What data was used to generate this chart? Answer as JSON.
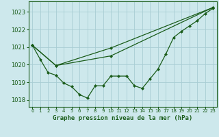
{
  "title": "Graphe pression niveau de la mer (hPa)",
  "bg_color": "#cde8ec",
  "grid_color": "#a8cdd4",
  "line_color": "#1a5c1a",
  "x_ticks": [
    0,
    1,
    2,
    3,
    4,
    5,
    6,
    7,
    8,
    9,
    10,
    11,
    12,
    13,
    14,
    15,
    16,
    17,
    18,
    19,
    20,
    21,
    22,
    23
  ],
  "y_ticks": [
    1018,
    1019,
    1020,
    1021,
    1022,
    1023
  ],
  "ylim": [
    1017.6,
    1023.6
  ],
  "xlim": [
    -0.5,
    23.5
  ],
  "line1_x": [
    0,
    1,
    2,
    3,
    4,
    5,
    6,
    7,
    8,
    9,
    10,
    11,
    12,
    13,
    14,
    15,
    16,
    17,
    18,
    19,
    20,
    21,
    22,
    23
  ],
  "line1_y": [
    1021.1,
    1020.3,
    1019.55,
    1019.4,
    1018.95,
    1018.75,
    1018.3,
    1018.1,
    1018.8,
    1018.8,
    1019.35,
    1019.35,
    1019.35,
    1018.8,
    1018.65,
    1019.2,
    1019.75,
    1020.6,
    1021.55,
    1021.9,
    1022.2,
    1022.5,
    1022.9,
    1023.2
  ],
  "line2_x": [
    0,
    3,
    10,
    23
  ],
  "line2_y": [
    1021.1,
    1019.95,
    1020.5,
    1023.25
  ],
  "line3_x": [
    0,
    3,
    10,
    23
  ],
  "line3_y": [
    1021.1,
    1019.95,
    1020.95,
    1023.25
  ]
}
